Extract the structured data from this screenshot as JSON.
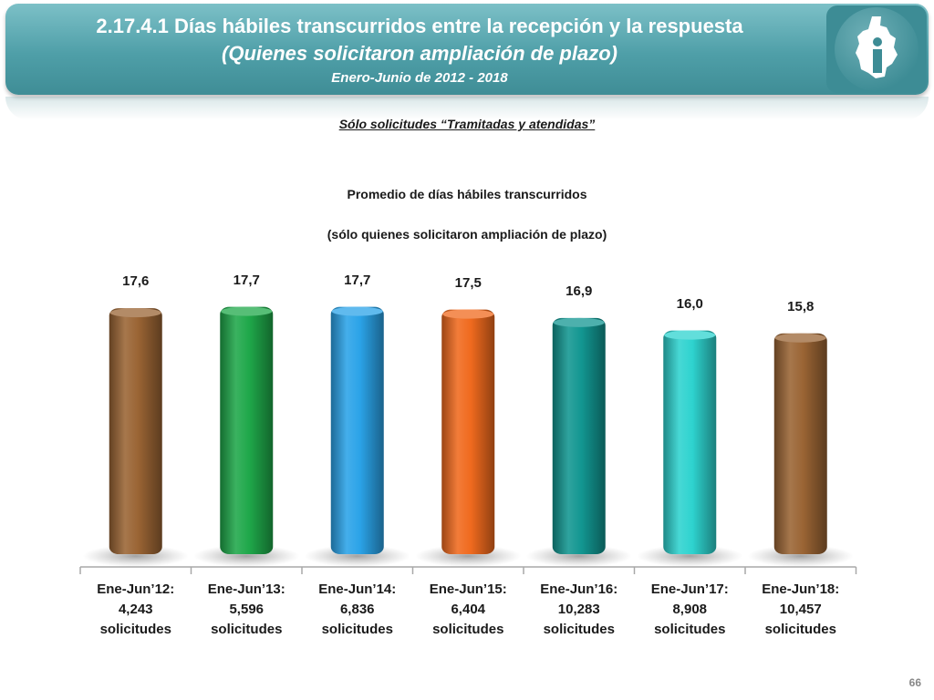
{
  "header": {
    "title": "2.17.4.1 Días hábiles transcurridos entre la recepción y la respuesta",
    "subtitle": "(Quienes solicitaron ampliación de plazo)",
    "period": "Enero-Junio de 2012 - 2018",
    "logo_icon": "city-emblem-icon"
  },
  "filter_note": "Sólo solicitudes “Tramitadas y atendidas”",
  "page_number": "66",
  "chart_data": {
    "type": "bar",
    "title": "Promedio de días hábiles transcurridos",
    "subtitle": "(sólo quienes solicitaron ampliación de plazo)",
    "xlabel": "",
    "ylabel": "",
    "ylim": [
      0,
      18
    ],
    "grid": false,
    "categories": [
      {
        "period": "Ene-Jun’12:",
        "count": "4,243",
        "unit": "solicitudes"
      },
      {
        "period": "Ene-Jun’13:",
        "count": "5,596",
        "unit": "solicitudes"
      },
      {
        "period": "Ene-Jun’14:",
        "count": "6,836",
        "unit": "solicitudes"
      },
      {
        "period": "Ene-Jun’15:",
        "count": "6,404",
        "unit": "solicitudes"
      },
      {
        "period": "Ene-Jun’16:",
        "count": "10,283",
        "unit": "solicitudes"
      },
      {
        "period": "Ene-Jun’17:",
        "count": "8,908",
        "unit": "solicitudes"
      },
      {
        "period": "Ene-Jun’18:",
        "count": "10,457",
        "unit": "solicitudes"
      }
    ],
    "values": [
      17.6,
      17.7,
      17.7,
      17.5,
      16.9,
      16.0,
      15.8
    ],
    "value_labels": [
      "17,6",
      "17,7",
      "17,7",
      "17,5",
      "16,9",
      "16,0",
      "15,8"
    ],
    "colors": [
      "#9a6434",
      "#1fa84a",
      "#2ba3e8",
      "#f06a1e",
      "#129691",
      "#2ed3cf",
      "#9a6434"
    ]
  }
}
